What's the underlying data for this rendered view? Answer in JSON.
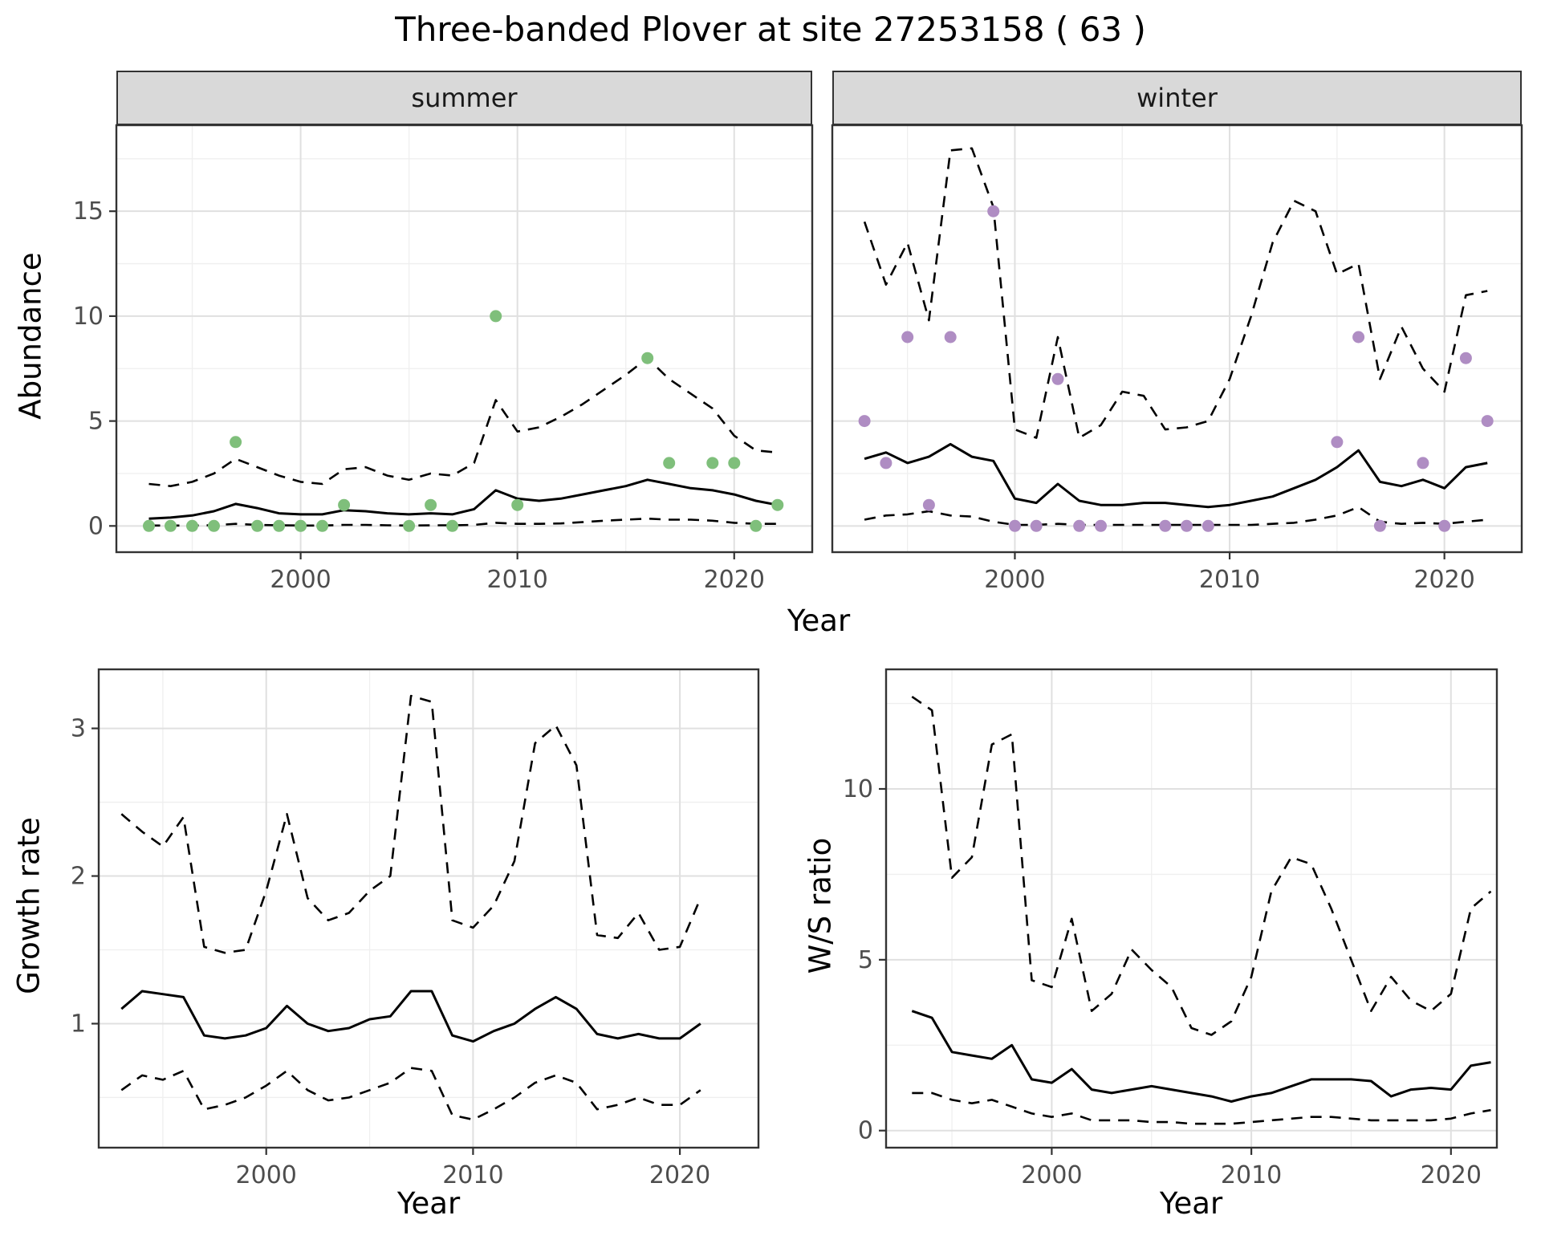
{
  "title": "Three-banded Plover at site 27253158 ( 63 )",
  "facets": [
    {
      "label": "summer"
    },
    {
      "label": "winter"
    }
  ],
  "axes": {
    "year_label": "Year",
    "abundance_label": "Abundance",
    "growth_label": "Growth rate",
    "ratio_label": "W/S ratio"
  },
  "colors": {
    "summer_points": "#7fbf7b",
    "winter_points": "#af8dc3",
    "line": "#000000",
    "grid_major": "#e0e0e0",
    "grid_minor": "#efefef",
    "panel_border": "#333333",
    "strip_bg": "#d9d9d9",
    "tick": "#333333",
    "tick_text": "#4d4d4d"
  },
  "chart_data": [
    {
      "id": "abundance-summer",
      "type": "line",
      "facet": "summer",
      "xlabel": "Year",
      "ylabel": "Abundance",
      "xlim": [
        1991.5,
        2023.6
      ],
      "ylim": [
        -1.25,
        19.1
      ],
      "xticks": [
        2000,
        2010,
        2020
      ],
      "yticks": [
        0,
        5,
        10,
        15
      ],
      "grid": true,
      "legend": "none",
      "x": [
        1993,
        1994,
        1995,
        1996,
        1997,
        1998,
        1999,
        2000,
        2001,
        2002,
        2003,
        2004,
        2005,
        2006,
        2007,
        2008,
        2009,
        2010,
        2011,
        2012,
        2013,
        2014,
        2015,
        2016,
        2017,
        2018,
        2019,
        2020,
        2021,
        2022
      ],
      "series": [
        {
          "name": "mean",
          "style": "solid",
          "values": [
            0.35,
            0.4,
            0.5,
            0.7,
            1.05,
            0.85,
            0.6,
            0.55,
            0.55,
            0.75,
            0.7,
            0.6,
            0.55,
            0.6,
            0.55,
            0.8,
            1.7,
            1.3,
            1.2,
            1.3,
            1.5,
            1.7,
            1.9,
            2.2,
            2.0,
            1.8,
            1.7,
            1.5,
            1.2,
            1.0
          ]
        },
        {
          "name": "upper95",
          "style": "dashed",
          "values": [
            2.0,
            1.9,
            2.1,
            2.5,
            3.2,
            2.8,
            2.4,
            2.1,
            2.0,
            2.7,
            2.8,
            2.4,
            2.2,
            2.5,
            2.4,
            3.0,
            6.0,
            4.5,
            4.7,
            5.2,
            5.8,
            6.5,
            7.2,
            8.0,
            7.0,
            6.3,
            5.6,
            4.3,
            3.6,
            3.5
          ]
        },
        {
          "name": "lower95",
          "style": "dashed",
          "values": [
            0.02,
            0.02,
            0.02,
            0.03,
            0.1,
            0.05,
            0.03,
            0.02,
            0.02,
            0.05,
            0.05,
            0.03,
            0.02,
            0.03,
            0.03,
            0.05,
            0.15,
            0.1,
            0.1,
            0.12,
            0.18,
            0.25,
            0.3,
            0.35,
            0.3,
            0.3,
            0.25,
            0.15,
            0.1,
            0.1
          ]
        }
      ],
      "points": {
        "color": "#7fbf7b",
        "x": [
          1993,
          1994,
          1995,
          1996,
          1997,
          1998,
          1999,
          2000,
          2001,
          2002,
          2005,
          2006,
          2007,
          2009,
          2010,
          2016,
          2017,
          2019,
          2020,
          2021,
          2022
        ],
        "y": [
          0,
          0,
          0,
          0,
          4,
          0,
          0,
          0,
          0,
          1,
          0,
          1,
          0,
          10,
          1,
          8,
          3,
          3,
          3,
          0,
          1
        ]
      }
    },
    {
      "id": "abundance-winter",
      "type": "line",
      "facet": "winter",
      "xlabel": "Year",
      "ylabel": "Abundance",
      "xlim": [
        1991.5,
        2023.6
      ],
      "ylim": [
        -1.25,
        19.1
      ],
      "xticks": [
        2000,
        2010,
        2020
      ],
      "yticks": [
        0,
        5,
        10,
        15
      ],
      "grid": true,
      "legend": "none",
      "x": [
        1993,
        1994,
        1995,
        1996,
        1997,
        1998,
        1999,
        2000,
        2001,
        2002,
        2003,
        2004,
        2005,
        2006,
        2007,
        2008,
        2009,
        2010,
        2011,
        2012,
        2013,
        2014,
        2015,
        2016,
        2017,
        2018,
        2019,
        2020,
        2021,
        2022
      ],
      "series": [
        {
          "name": "mean",
          "style": "solid",
          "values": [
            3.2,
            3.5,
            3.0,
            3.3,
            3.9,
            3.3,
            3.1,
            1.3,
            1.1,
            2.0,
            1.2,
            1.0,
            1.0,
            1.1,
            1.1,
            1.0,
            0.9,
            1.0,
            1.2,
            1.4,
            1.8,
            2.2,
            2.8,
            3.6,
            2.1,
            1.9,
            2.2,
            1.8,
            2.8,
            3.0
          ]
        },
        {
          "name": "upper95",
          "style": "dashed",
          "values": [
            14.5,
            11.5,
            13.5,
            9.8,
            17.9,
            18.0,
            15.2,
            4.6,
            4.2,
            9.0,
            4.2,
            4.8,
            6.4,
            6.2,
            4.6,
            4.7,
            5.0,
            7.0,
            10.0,
            13.5,
            15.5,
            15.0,
            12.0,
            12.5,
            7.0,
            9.5,
            7.5,
            6.4,
            11.0,
            11.2
          ]
        },
        {
          "name": "lower95",
          "style": "dashed",
          "values": [
            0.3,
            0.5,
            0.55,
            0.7,
            0.5,
            0.45,
            0.2,
            0.05,
            0.05,
            0.1,
            0.05,
            0.05,
            0.05,
            0.05,
            0.05,
            0.05,
            0.05,
            0.05,
            0.05,
            0.1,
            0.15,
            0.3,
            0.5,
            0.9,
            0.2,
            0.1,
            0.15,
            0.1,
            0.2,
            0.3
          ]
        }
      ],
      "points": {
        "color": "#af8dc3",
        "x": [
          1993,
          1994,
          1995,
          1996,
          1997,
          1999,
          2000,
          2001,
          2002,
          2003,
          2004,
          2007,
          2008,
          2009,
          2015,
          2016,
          2017,
          2019,
          2020,
          2021,
          2022
        ],
        "y": [
          5,
          3,
          9,
          1,
          9,
          15,
          0,
          0,
          7,
          0,
          0,
          0,
          0,
          0,
          4,
          9,
          0,
          3,
          0,
          8,
          5
        ]
      }
    },
    {
      "id": "growth-rate",
      "type": "line",
      "xlabel": "Year",
      "ylabel": "Growth rate",
      "xlim": [
        1991.9,
        2023.8
      ],
      "ylim": [
        0.16,
        3.4
      ],
      "xticks": [
        2000,
        2010,
        2020
      ],
      "yticks": [
        1,
        2,
        3
      ],
      "grid": true,
      "legend": "none",
      "x": [
        1993,
        1994,
        1995,
        1996,
        1997,
        1998,
        1999,
        2000,
        2001,
        2002,
        2003,
        2004,
        2005,
        2006,
        2007,
        2008,
        2009,
        2010,
        2011,
        2012,
        2013,
        2014,
        2015,
        2016,
        2017,
        2018,
        2019,
        2020,
        2021
      ],
      "series": [
        {
          "name": "mean",
          "style": "solid",
          "values": [
            1.1,
            1.22,
            1.2,
            1.18,
            0.92,
            0.9,
            0.92,
            0.97,
            1.12,
            1.0,
            0.95,
            0.97,
            1.03,
            1.05,
            1.22,
            1.22,
            0.92,
            0.88,
            0.95,
            1.0,
            1.1,
            1.18,
            1.1,
            0.93,
            0.9,
            0.93,
            0.9,
            0.9,
            1.0
          ]
        },
        {
          "name": "upper95",
          "style": "dashed",
          "values": [
            2.42,
            2.3,
            2.2,
            2.4,
            1.52,
            1.48,
            1.5,
            1.9,
            2.42,
            1.85,
            1.7,
            1.75,
            1.9,
            2.0,
            3.22,
            3.18,
            1.7,
            1.65,
            1.8,
            2.1,
            2.9,
            3.02,
            2.75,
            1.6,
            1.58,
            1.75,
            1.5,
            1.52,
            1.85
          ]
        },
        {
          "name": "lower95",
          "style": "dashed",
          "values": [
            0.55,
            0.65,
            0.62,
            0.68,
            0.42,
            0.45,
            0.5,
            0.58,
            0.68,
            0.55,
            0.48,
            0.5,
            0.55,
            0.6,
            0.7,
            0.68,
            0.38,
            0.35,
            0.42,
            0.5,
            0.6,
            0.65,
            0.6,
            0.42,
            0.45,
            0.5,
            0.45,
            0.45,
            0.55
          ]
        }
      ]
    },
    {
      "id": "ws-ratio",
      "type": "line",
      "xlabel": "Year",
      "ylabel": "W/S ratio",
      "xlim": [
        1991.7,
        2022.3
      ],
      "ylim": [
        -0.5,
        13.5
      ],
      "xticks": [
        2000,
        2010,
        2020
      ],
      "yticks": [
        0,
        5,
        10
      ],
      "grid": true,
      "legend": "none",
      "x": [
        1993,
        1994,
        1995,
        1996,
        1997,
        1998,
        1999,
        2000,
        2001,
        2002,
        2003,
        2004,
        2005,
        2006,
        2007,
        2008,
        2009,
        2010,
        2011,
        2012,
        2013,
        2014,
        2015,
        2016,
        2017,
        2018,
        2019,
        2020,
        2021,
        2022
      ],
      "series": [
        {
          "name": "mean",
          "style": "solid",
          "values": [
            3.5,
            3.3,
            2.3,
            2.2,
            2.1,
            2.5,
            1.5,
            1.4,
            1.8,
            1.2,
            1.1,
            1.2,
            1.3,
            1.2,
            1.1,
            1.0,
            0.85,
            1.0,
            1.1,
            1.3,
            1.5,
            1.5,
            1.5,
            1.45,
            1.0,
            1.2,
            1.25,
            1.2,
            1.9,
            2.0
          ]
        },
        {
          "name": "upper95",
          "style": "dashed",
          "values": [
            12.7,
            12.3,
            7.4,
            8.0,
            11.3,
            11.6,
            4.4,
            4.2,
            6.2,
            3.5,
            4.0,
            5.3,
            4.7,
            4.2,
            3.0,
            2.8,
            3.2,
            4.5,
            7.0,
            8.0,
            7.8,
            6.5,
            5.0,
            3.5,
            4.5,
            3.8,
            3.5,
            4.0,
            6.5,
            7.0
          ]
        },
        {
          "name": "lower95",
          "style": "dashed",
          "values": [
            1.1,
            1.1,
            0.9,
            0.8,
            0.9,
            0.7,
            0.5,
            0.4,
            0.5,
            0.3,
            0.3,
            0.3,
            0.25,
            0.25,
            0.2,
            0.2,
            0.2,
            0.25,
            0.3,
            0.35,
            0.4,
            0.4,
            0.35,
            0.3,
            0.3,
            0.3,
            0.3,
            0.35,
            0.5,
            0.6
          ]
        }
      ]
    }
  ]
}
